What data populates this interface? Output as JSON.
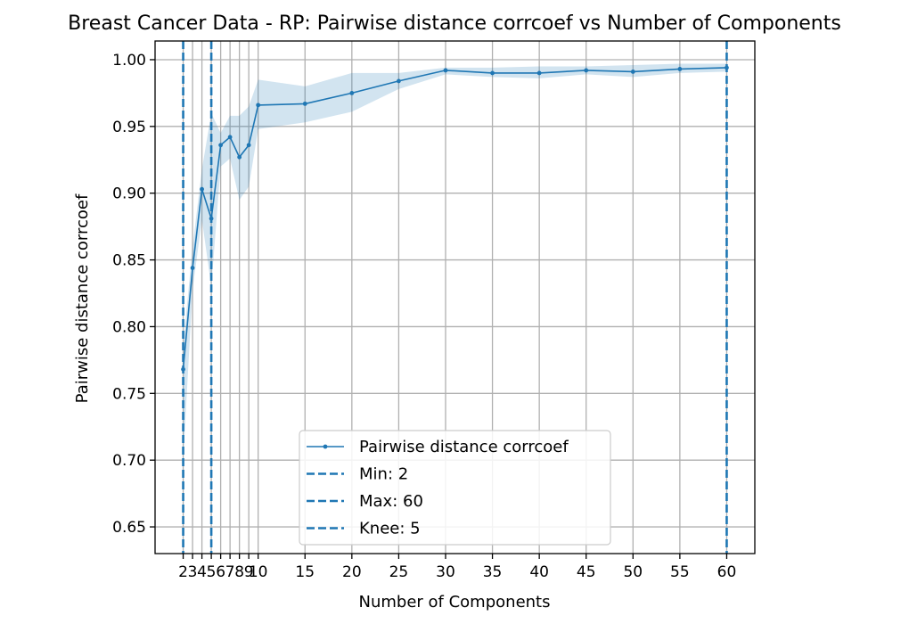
{
  "chart_data": {
    "type": "line",
    "title": "Breast Cancer Data - RP: Pairwise distance corrcoef vs Number of Components",
    "xlabel": "Number of Components",
    "ylabel": "Pairwise distance corrcoef",
    "xlim": [
      -1,
      63
    ],
    "ylim": [
      0.63,
      1.014
    ],
    "grid": true,
    "legend_position": "lower center",
    "x_ticks": [
      2,
      3,
      4,
      5,
      6,
      7,
      8,
      9,
      10,
      15,
      20,
      25,
      30,
      35,
      40,
      45,
      50,
      55,
      60
    ],
    "x_tick_labels": [
      "2",
      "3",
      "4",
      "5",
      "6",
      "7",
      "8",
      "9",
      "10",
      "15",
      "20",
      "25",
      "30",
      "35",
      "40",
      "45",
      "50",
      "55",
      "60"
    ],
    "y_ticks": [
      0.65,
      0.7,
      0.75,
      0.8,
      0.85,
      0.9,
      0.95,
      1.0
    ],
    "y_tick_labels": [
      "0.65",
      "0.70",
      "0.75",
      "0.80",
      "0.85",
      "0.90",
      "0.95",
      "1.00"
    ],
    "series": [
      {
        "name": "Pairwise distance corrcoef",
        "color": "#1f77b4",
        "x": [
          2,
          3,
          4,
          5,
          6,
          7,
          8,
          9,
          10,
          15,
          20,
          25,
          30,
          35,
          40,
          45,
          50,
          55,
          60
        ],
        "y": [
          0.768,
          0.844,
          0.903,
          0.881,
          0.936,
          0.942,
          0.927,
          0.936,
          0.966,
          0.967,
          0.975,
          0.984,
          0.992,
          0.99,
          0.99,
          0.992,
          0.991,
          0.993,
          0.994
        ],
        "band_upper": [
          0.785,
          0.86,
          0.918,
          0.96,
          0.945,
          0.958,
          0.958,
          0.965,
          0.985,
          0.98,
          0.99,
          0.99,
          0.994,
          0.994,
          0.995,
          0.995,
          0.996,
          0.997,
          0.997
        ],
        "band_lower": [
          0.7,
          0.828,
          0.88,
          0.83,
          0.92,
          0.926,
          0.895,
          0.905,
          0.948,
          0.953,
          0.961,
          0.978,
          0.989,
          0.987,
          0.986,
          0.989,
          0.987,
          0.99,
          0.991
        ]
      }
    ],
    "vlines": [
      {
        "name": "Min: 2",
        "x": 2,
        "color": "#1f77b4"
      },
      {
        "name": "Max: 60",
        "x": 60,
        "color": "#1f77b4"
      },
      {
        "name": "Knee: 5",
        "x": 5,
        "color": "#1f77b4"
      }
    ]
  }
}
